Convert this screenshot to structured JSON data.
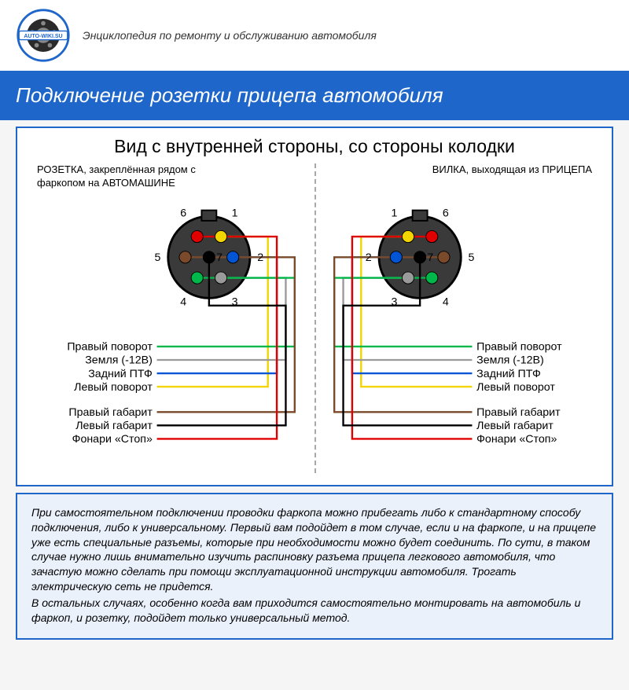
{
  "header": {
    "logo_text": "AUTO-WIKI.SU",
    "subtitle": "Энциклопедия по ремонту и обслуживанию автомобиля"
  },
  "title": "Подключение розетки прицепа автомобиля",
  "diagram": {
    "heading": "Вид с внутренней стороны, со стороны колодки",
    "left_caption_1": "РОЗЕТКА, закреплённая рядом с",
    "left_caption_2": "фаркопом на АВТОМАШИНЕ",
    "right_caption_1": "ВИЛКА, выходящая из ПРИЦЕПА",
    "pins": [
      {
        "n": 1,
        "label": "Левый поворот",
        "color": "#f2d400"
      },
      {
        "n": 2,
        "label": "Задний ПТФ",
        "color": "#0055d4"
      },
      {
        "n": 3,
        "label": "Земля (-12В)",
        "color": "#9a9a9a"
      },
      {
        "n": 4,
        "label": "Правый поворот",
        "color": "#00b84a"
      },
      {
        "n": 5,
        "label": "Правый габарит",
        "color": "#7a4a2a"
      },
      {
        "n": 6,
        "label": "Фонари «Стоп»",
        "color": "#e00000"
      },
      {
        "n": 7,
        "label": "Левый габарит",
        "color": "#000000"
      }
    ],
    "label_order": [
      "Правый поворот",
      "Земля (-12В)",
      "Задний ПТФ",
      "Левый поворот",
      "Правый габарит",
      "Левый габарит",
      "Фонари «Стоп»"
    ]
  },
  "footer": {
    "p1": "При самостоятельном подключении проводки фаркопа можно прибегать либо к стандартному способу подключения, либо к универсальному. Первый вам подойдет в том случае, если и на фаркопе, и на прицепе уже есть специальные разъемы, которые при необходимости можно будет соединить. По сути, в таком случае нужно лишь внимательно изучить распиновку разъема прицепа легкового автомобиля, что зачастую можно сделать при помощи эксплуатационной инструкции автомобиля. Трогать электрическую сеть не придется.",
    "p2": "В остальных случаях, особенно когда вам приходится самостоятельно монтировать на автомобиль и фаркоп, и розетку, подойдет только универсальный метод."
  },
  "style": {
    "title_bg": "#1e66ca",
    "border": "#1e66ca",
    "footer_bg": "#eaf1fb",
    "connector_fill": "#3a3a3a",
    "connector_stroke": "#000",
    "wire_width": 2.5
  }
}
